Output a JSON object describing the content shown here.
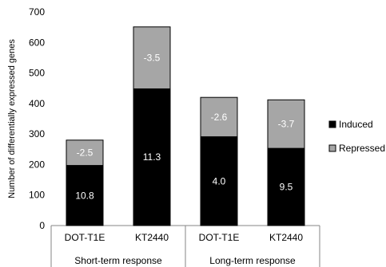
{
  "chart_data": {
    "type": "bar",
    "stacked": true,
    "title": "",
    "ylabel": "Number of differentially expressed genes",
    "xlabel": "",
    "ylim": [
      0,
      700
    ],
    "yticks": [
      0,
      100,
      200,
      300,
      400,
      500,
      600,
      700
    ],
    "categories": [
      "DOT-T1E",
      "KT2440",
      "DOT-T1E",
      "KT2440"
    ],
    "groups": [
      {
        "label": "Short-term response",
        "categories": [
          0,
          1
        ]
      },
      {
        "label": "Long-term response",
        "categories": [
          2,
          3
        ]
      }
    ],
    "series": [
      {
        "name": "Induced",
        "color": "#000000",
        "values": [
          197,
          448,
          291,
          253
        ],
        "labels": [
          "10.8",
          "11.3",
          "4.0",
          "9.5"
        ]
      },
      {
        "name": "Repressed",
        "color": "#a6a6a6",
        "values": [
          83,
          203,
          129,
          159
        ],
        "labels": [
          "-2.5",
          "-3.5",
          "-2.6",
          "-3.7"
        ]
      }
    ],
    "grid": false,
    "legend_position": "right"
  }
}
